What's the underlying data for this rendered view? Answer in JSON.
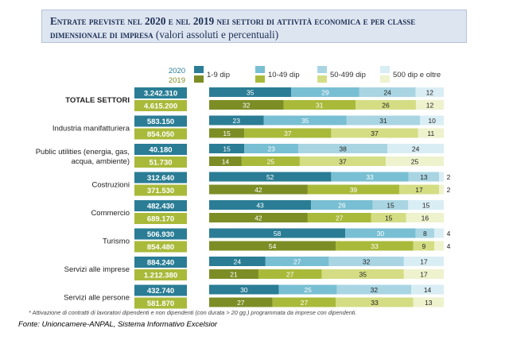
{
  "header": {
    "title": "Entrate previste nel 2020 e nel 2019 nei settori di attività economica e per classe dimensionale di impresa",
    "subtitle": "(valori assoluti e percentuali)"
  },
  "year_labels": [
    "2020",
    "2019"
  ],
  "footnote": "* Attivazione di contratti di lavoratori dipendenti e non dipendenti (con durata > 20 gg.) programmata da imprese con dipendenti.",
  "source": "Fonte: Unioncamere-ANPAL, Sistema Informativo Excelsior",
  "colors": {
    "2020": [
      "#2a7d95",
      "#79bfd3",
      "#a9d5e3",
      "#d9edf4"
    ],
    "2019": [
      "#7d8d25",
      "#a9ba3a",
      "#d4dd84",
      "#eef2cd"
    ],
    "value_box_2020": "#2a7d95",
    "value_box_2019": "#a9ba3a"
  },
  "chart_data": {
    "type": "bar",
    "orientation": "horizontal-stacked-100",
    "legend": [
      "1-9 dip",
      "10-49 dip",
      "50-499 dip",
      "500 dip e oltre"
    ],
    "categories": [
      "TOTALE SETTORI",
      "Industria manifatturiera",
      "Public utilities (energia, gas, acqua, ambiente)",
      "Costruzioni",
      "Commercio",
      "Turismo",
      "Servizi alle imprese",
      "Servizi alle persone"
    ],
    "category_lines": [
      [
        "TOTALE SETTORI"
      ],
      [
        "Industria manifatturiera"
      ],
      [
        "Public utilities (energia, gas,",
        "acqua, ambiente)"
      ],
      [
        "Costruzioni"
      ],
      [
        "Commercio"
      ],
      [
        "Turismo"
      ],
      [
        "Servizi alle imprese"
      ],
      [
        "Servizi alle persone"
      ]
    ],
    "totals_2020": [
      "3.242.310",
      "583.150",
      "40.180",
      "312.640",
      "482.430",
      "506.930",
      "884.240",
      "432.740"
    ],
    "totals_2019": [
      "4.615.200",
      "854.050",
      "51.730",
      "371.530",
      "689.170",
      "854.480",
      "1.212.380",
      "581.870"
    ],
    "shares_2020": [
      [
        35,
        29,
        24,
        12
      ],
      [
        23,
        35,
        31,
        10
      ],
      [
        15,
        23,
        38,
        24
      ],
      [
        52,
        33,
        13,
        2
      ],
      [
        43,
        26,
        15,
        15
      ],
      [
        58,
        30,
        8,
        4
      ],
      [
        24,
        27,
        32,
        17
      ],
      [
        30,
        25,
        32,
        14
      ]
    ],
    "shares_2019": [
      [
        32,
        31,
        26,
        12
      ],
      [
        15,
        37,
        37,
        11
      ],
      [
        14,
        25,
        37,
        25
      ],
      [
        42,
        39,
        17,
        2
      ],
      [
        42,
        27,
        15,
        16
      ],
      [
        54,
        33,
        9,
        4
      ],
      [
        21,
        27,
        35,
        17
      ],
      [
        27,
        27,
        33,
        13
      ]
    ]
  }
}
